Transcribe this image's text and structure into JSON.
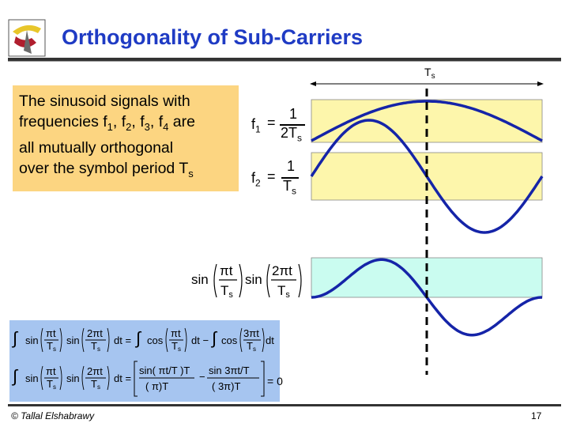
{
  "slide": {
    "title": "Orthogonality of Sub-Carriers",
    "description": "The sinusoid signals with frequencies f1, f2, f3, f4 are all mutually orthogonal over the symbol period Ts",
    "description_parts": {
      "line1": "The sinusoid signals with",
      "line2a": "frequencies f",
      "s1": "1",
      "sep1": ", f",
      "s2": "2",
      "sep2": ", f",
      "s3": "3",
      "sep3": ", f",
      "s4": "4",
      "line2b": " are",
      "line3": "all mutually orthogonal",
      "line4a": "over the symbol period T",
      "line4s": "s"
    },
    "period_label": {
      "T": "T",
      "sub": "s"
    },
    "f1": {
      "lhs": "f",
      "lhs_sub": "1",
      "eq": "=",
      "num": "1",
      "den": "2T",
      "den_sub": "s"
    },
    "f2": {
      "lhs": "f",
      "lhs_sub": "2",
      "eq": "=",
      "num": "1",
      "den": "T",
      "den_sub": "s"
    },
    "product": {
      "sin": "sin",
      "num1": "πt",
      "den1": "T",
      "den1_sub": "s",
      "num2": "2πt",
      "den2": "T",
      "den2_sub": "s"
    },
    "integral_eq": {
      "row1": "∫ sin(πt/Ts) sin(2πt/Ts) dt = ∫ cos(πt/Ts) dt − ∫ cos(3πt/Ts) dt",
      "row2": "= [ sin(πt/Ts)/(π/Ts) − sin(3πt/Ts)/(3π/Ts) ] = 0",
      "zero": "0"
    },
    "copyright": "© Tallal Elshabrawy",
    "page_number": "17"
  },
  "colors": {
    "title": "#1f3bc4",
    "desc_box": "#fcd581",
    "plot_yellow": "#fdf6ab",
    "plot_cyan": "#cafcf0",
    "curve": "#1524a8",
    "math_box": "#a6c5f0"
  }
}
